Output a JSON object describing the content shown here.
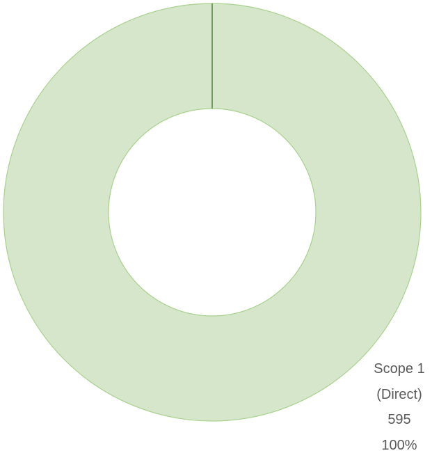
{
  "chart_data": {
    "type": "donut",
    "categories": [
      "Scope 1 (Direct)"
    ],
    "values": [
      595
    ],
    "shares": [
      100
    ],
    "share_labels": [
      "100%"
    ],
    "colors": [
      "#d5e6cb"
    ]
  }
}
